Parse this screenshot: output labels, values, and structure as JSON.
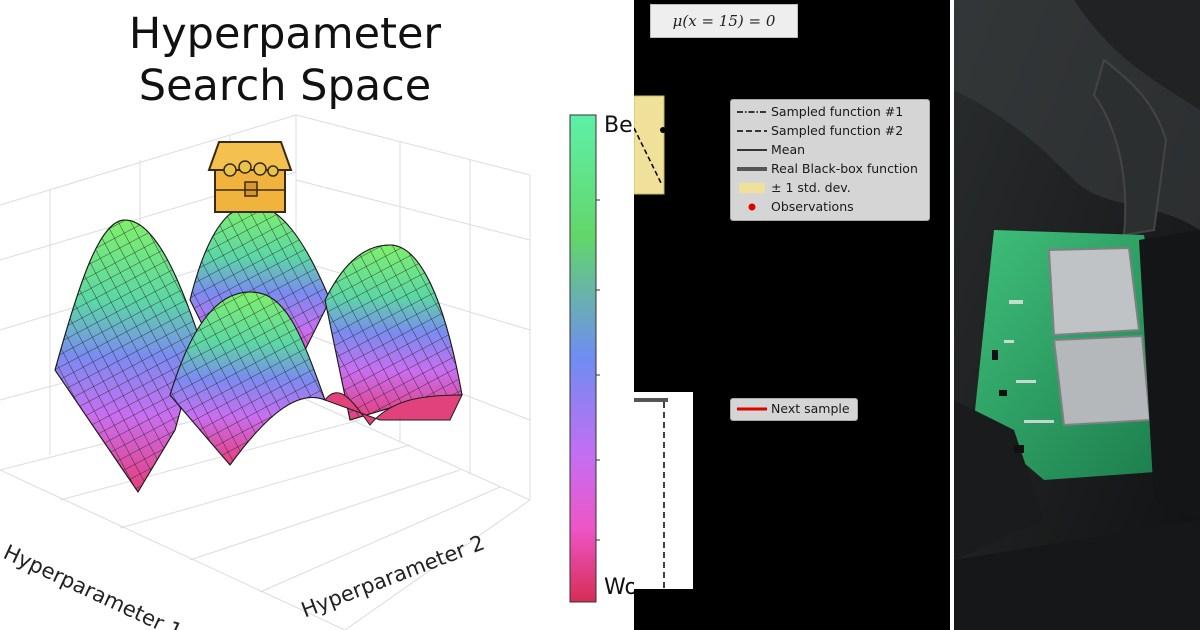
{
  "left": {
    "title_line1": "Hyperpameter",
    "title_line2": "Search Space",
    "axis_x": "Hyperparameter 1",
    "axis_y": "Hyperparameter 2",
    "colorbar": {
      "top_label": "Be",
      "bottom_label": "Wo",
      "gradient_top": "#5ef0a8",
      "gradient_bottom": "#d62d55"
    },
    "treasure_icon": "treasure-chest-icon"
  },
  "middle": {
    "equation": "μ(x = 15) = 0",
    "legend": [
      {
        "label": "Sampled function #1",
        "style": "dash-dot"
      },
      {
        "label": "Sampled function #2",
        "style": "dashed"
      },
      {
        "label": "Mean",
        "style": "solid"
      },
      {
        "label": "Real Black-box function",
        "style": "thick"
      },
      {
        "label": "± 1 std. dev.",
        "style": "patch"
      },
      {
        "label": "Observations",
        "style": "dot"
      }
    ],
    "legend2": {
      "label": "Next sample"
    },
    "colors": {
      "std_band": "#efe09a",
      "observation": "#e00000",
      "next_sample": "#e00000"
    }
  },
  "right": {
    "photo_subject": "circuit-board-photo"
  }
}
